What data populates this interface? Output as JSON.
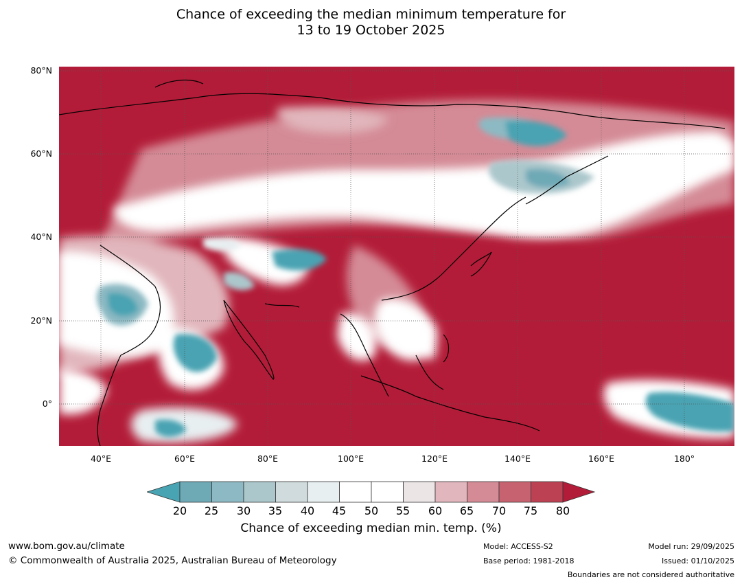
{
  "title": {
    "line1": "Chance of exceeding the median minimum temperature for",
    "line2": "13 to 19 October 2025"
  },
  "map": {
    "lat_labels": [
      "80°N",
      "60°N",
      "40°N",
      "20°N",
      "0°"
    ],
    "lon_labels": [
      "40°E",
      "60°E",
      "80°E",
      "100°E",
      "120°E",
      "140°E",
      "160°E",
      "180°"
    ],
    "extent": {
      "lon_min": 30,
      "lon_max": 192,
      "lat_min": -10,
      "lat_max": 81
    }
  },
  "legend": {
    "ticks": [
      "20",
      "25",
      "30",
      "35",
      "40",
      "45",
      "50",
      "55",
      "60",
      "65",
      "70",
      "75",
      "80"
    ],
    "colors": [
      "#6ea9b6",
      "#8cb9c3",
      "#abc7cc",
      "#d0dbdd",
      "#e8eff1",
      "#ffffff",
      "#ffffff",
      "#ebe5e6",
      "#e1b6bc",
      "#d48b96",
      "#c76370",
      "#bc4253"
    ],
    "low_color": "#48a3b2",
    "high_color": "#b31c38",
    "label": "Chance of exceeding median min. temp. (%)"
  },
  "footer": {
    "website": "www.bom.gov.au/climate",
    "copyright": "© Commonwealth of Australia 2025, Australian Bureau of Meteorology",
    "model": "Model: ACCESS-S2",
    "base_period": "Base period: 1981-2018",
    "model_run": "Model run: 29/09/2025",
    "issued": "Issued: 01/10/2025",
    "disclaimer": "Boundaries are not considered authoritative"
  }
}
